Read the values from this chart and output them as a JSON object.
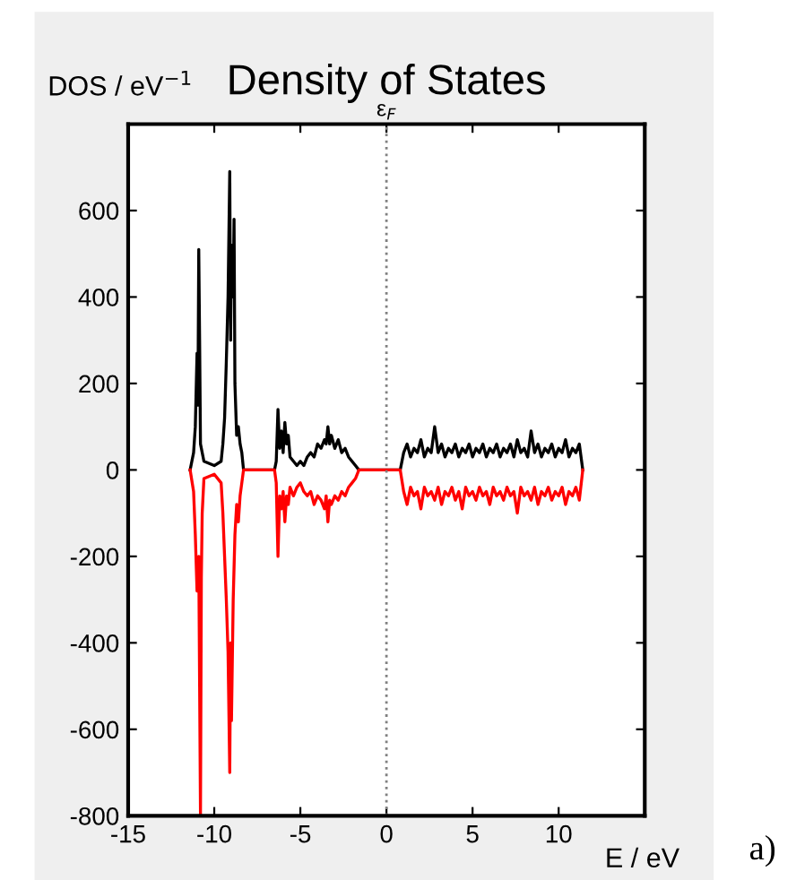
{
  "chart_data": {
    "type": "line",
    "title": "Density of States",
    "xlabel": "E / eV",
    "ylabel": "DOS / eV$^{−1}$",
    "annotations": [
      "a)"
    ],
    "xlim": [
      -15,
      15
    ],
    "xticks": [
      -15,
      -10,
      -5,
      0,
      5,
      10,
      {
        "value": 15,
        "label": null
      }
    ],
    "ylim": [
      -800,
      800
    ],
    "yticks": [
      -800,
      -600,
      -400,
      -200,
      0,
      200,
      400,
      600,
      {
        "value": 800,
        "label": null
      }
    ],
    "grid": false,
    "legend": false,
    "marker": "none",
    "line_style": "solid",
    "ref_lines": [
      {
        "axis": "x",
        "value": 0,
        "label": "ε$_{F}$",
        "color": "#808080",
        "line_style": "dotted"
      }
    ],
    "series": [
      {
        "color": "#000000",
        "x": [
          -11.4,
          -11.2,
          -11.1,
          -11.0,
          -10.95,
          -10.9,
          -10.85,
          -10.8,
          -10.6,
          -10.0,
          -9.6,
          -9.5,
          -9.4,
          -9.3,
          -9.2,
          -9.1,
          -9.05,
          -9.0,
          -8.9,
          -8.85,
          -8.8,
          -8.7,
          -8.6,
          -8.5,
          -8.4,
          -8.3,
          -6.5,
          -6.4,
          -6.3,
          -6.2,
          -6.1,
          -6.0,
          -5.9,
          -5.8,
          -5.7,
          -5.6,
          -5.4,
          -5.2,
          -5.0,
          -4.8,
          -4.6,
          -4.4,
          -4.2,
          -4.0,
          -3.8,
          -3.6,
          -3.5,
          -3.4,
          -3.3,
          -3.2,
          -3.0,
          -2.8,
          -2.6,
          -2.4,
          -2.2,
          -2.0,
          -1.8,
          -1.6,
          0.8,
          1.0,
          1.2,
          1.4,
          1.6,
          1.8,
          2.0,
          2.2,
          2.4,
          2.6,
          2.8,
          3.0,
          3.2,
          3.4,
          3.6,
          3.8,
          4.0,
          4.2,
          4.4,
          4.6,
          4.8,
          5.0,
          5.2,
          5.4,
          5.6,
          5.8,
          6.0,
          6.2,
          6.4,
          6.6,
          6.8,
          7.0,
          7.2,
          7.4,
          7.6,
          7.8,
          8.0,
          8.2,
          8.4,
          8.6,
          8.8,
          9.0,
          9.2,
          9.4,
          9.6,
          9.8,
          10.0,
          10.2,
          10.4,
          10.6,
          10.8,
          11.0,
          11.2,
          11.4
        ],
        "values": [
          0,
          40,
          100,
          270,
          150,
          510,
          300,
          60,
          20,
          10,
          20,
          60,
          120,
          250,
          400,
          690,
          300,
          520,
          400,
          580,
          200,
          80,
          100,
          60,
          40,
          0,
          0,
          20,
          140,
          50,
          90,
          40,
          110,
          60,
          80,
          30,
          20,
          10,
          20,
          10,
          30,
          40,
          30,
          60,
          50,
          70,
          60,
          100,
          60,
          80,
          50,
          70,
          40,
          50,
          30,
          20,
          10,
          0,
          0,
          40,
          60,
          30,
          50,
          40,
          70,
          30,
          50,
          40,
          100,
          40,
          60,
          30,
          50,
          40,
          60,
          30,
          50,
          40,
          60,
          30,
          50,
          40,
          60,
          30,
          50,
          40,
          60,
          30,
          50,
          40,
          60,
          30,
          70,
          40,
          50,
          30,
          90,
          40,
          60,
          30,
          50,
          40,
          60,
          30,
          50,
          40,
          70,
          30,
          50,
          40,
          60,
          0
        ]
      },
      {
        "color": "#ff0000",
        "x": [
          -11.4,
          -11.2,
          -11.1,
          -11.0,
          -10.9,
          -10.8,
          -10.75,
          -10.7,
          -10.6,
          -10.0,
          -9.6,
          -9.5,
          -9.4,
          -9.3,
          -9.2,
          -9.1,
          -9.05,
          -9.0,
          -8.9,
          -8.8,
          -8.7,
          -8.6,
          -8.5,
          -8.4,
          -8.3,
          -6.5,
          -6.4,
          -6.3,
          -6.2,
          -6.1,
          -6.0,
          -5.9,
          -5.8,
          -5.7,
          -5.6,
          -5.4,
          -5.2,
          -5.0,
          -4.8,
          -4.6,
          -4.4,
          -4.2,
          -4.0,
          -3.8,
          -3.6,
          -3.5,
          -3.4,
          -3.3,
          -3.2,
          -3.0,
          -2.8,
          -2.6,
          -2.4,
          -2.2,
          -2.0,
          -1.8,
          -1.6,
          0.8,
          1.0,
          1.2,
          1.4,
          1.6,
          1.8,
          2.0,
          2.2,
          2.4,
          2.6,
          2.8,
          3.0,
          3.2,
          3.4,
          3.6,
          3.8,
          4.0,
          4.2,
          4.4,
          4.6,
          4.8,
          5.0,
          5.2,
          5.4,
          5.6,
          5.8,
          6.0,
          6.2,
          6.4,
          6.6,
          6.8,
          7.0,
          7.2,
          7.4,
          7.6,
          7.8,
          8.0,
          8.2,
          8.4,
          8.6,
          8.8,
          9.0,
          9.2,
          9.4,
          9.6,
          9.8,
          10.0,
          10.2,
          10.4,
          10.6,
          10.8,
          11.0,
          11.2,
          11.4
        ],
        "values": [
          0,
          -50,
          -150,
          -280,
          -200,
          -800,
          -250,
          -100,
          -20,
          -10,
          -30,
          -100,
          -200,
          -300,
          -420,
          -700,
          -400,
          -580,
          -300,
          -150,
          -80,
          -120,
          -60,
          -30,
          0,
          0,
          -30,
          -200,
          -60,
          -90,
          -50,
          -120,
          -60,
          -80,
          -40,
          -60,
          -40,
          -30,
          -50,
          -60,
          -50,
          -80,
          -60,
          -70,
          -90,
          -60,
          -120,
          -70,
          -80,
          -60,
          -70,
          -50,
          -60,
          -40,
          -30,
          -20,
          0,
          0,
          -50,
          -80,
          -40,
          -60,
          -50,
          -90,
          -40,
          -60,
          -50,
          -70,
          -40,
          -80,
          -50,
          -60,
          -40,
          -70,
          -50,
          -90,
          -40,
          -60,
          -50,
          -70,
          -40,
          -60,
          -50,
          -80,
          -40,
          -60,
          -50,
          -70,
          -40,
          -60,
          -50,
          -100,
          -40,
          -60,
          -50,
          -70,
          -40,
          -80,
          -50,
          -60,
          -40,
          -70,
          -50,
          -60,
          -40,
          -80,
          -50,
          -60,
          -40,
          -70,
          0
        ]
      }
    ]
  }
}
